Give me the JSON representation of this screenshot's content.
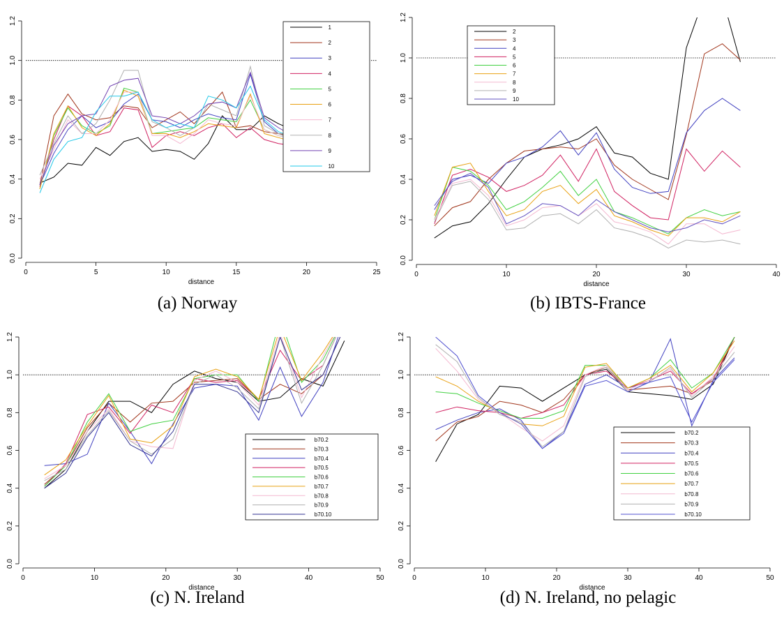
{
  "chart_data": [
    {
      "type": "line",
      "caption": "(a) Norway",
      "xlabel": "distance",
      "legend": "upper right",
      "hline": 1,
      "hline_style": "dotted",
      "x": [
        1,
        2,
        3,
        4,
        5,
        6,
        7,
        8,
        9,
        10,
        11,
        12,
        13,
        14,
        15,
        16,
        17,
        18,
        19
      ],
      "xlim": [
        0,
        25
      ],
      "xticks": [
        0,
        5,
        10,
        15,
        20,
        25
      ],
      "ylim": [
        0,
        1.2
      ],
      "yticks": [
        {
          "value": 0,
          "label": "0.0"
        },
        0.2,
        0.4,
        0.6,
        0.8,
        {
          "value": 1,
          "label": "1.0"
        },
        1.2
      ],
      "series": [
        {
          "name": "1",
          "color": "#000000",
          "values": [
            0.38,
            0.41,
            0.48,
            0.47,
            0.56,
            0.52,
            0.59,
            0.61,
            0.54,
            0.55,
            0.54,
            0.5,
            0.58,
            0.72,
            0.65,
            0.65,
            0.72,
            0.68,
            0.65
          ]
        },
        {
          "name": "2",
          "color": "#a0341a",
          "values": [
            0.37,
            0.72,
            0.83,
            0.73,
            0.7,
            0.71,
            0.77,
            0.76,
            0.66,
            0.7,
            0.74,
            0.68,
            0.76,
            0.84,
            0.66,
            0.67,
            0.64,
            0.63,
            0.62
          ]
        },
        {
          "name": "3",
          "color": "#4040c0",
          "values": [
            0.37,
            0.53,
            0.65,
            0.72,
            0.66,
            0.69,
            0.78,
            0.83,
            0.7,
            0.69,
            0.66,
            0.7,
            0.73,
            0.71,
            0.7,
            0.93,
            0.69,
            0.63,
            0.6
          ]
        },
        {
          "name": "4",
          "color": "#d02060",
          "values": [
            0.36,
            0.6,
            0.77,
            0.72,
            0.62,
            0.64,
            0.76,
            0.75,
            0.56,
            0.62,
            0.64,
            0.62,
            0.66,
            0.68,
            0.61,
            0.66,
            0.6,
            0.58,
            0.57
          ]
        },
        {
          "name": "5",
          "color": "#40d040",
          "values": [
            0.35,
            0.62,
            0.76,
            0.67,
            0.63,
            0.67,
            0.86,
            0.84,
            0.63,
            0.64,
            0.65,
            0.66,
            0.71,
            0.7,
            0.69,
            0.8,
            0.65,
            0.62,
            0.6
          ]
        },
        {
          "name": "6",
          "color": "#e8a010",
          "values": [
            0.35,
            0.63,
            0.77,
            0.66,
            0.62,
            0.68,
            0.85,
            0.82,
            0.63,
            0.63,
            0.61,
            0.64,
            0.68,
            0.67,
            0.66,
            0.83,
            0.63,
            0.61,
            0.59
          ]
        },
        {
          "name": "7",
          "color": "#f4b8d0",
          "values": [
            0.4,
            0.55,
            0.7,
            0.63,
            0.63,
            0.7,
            0.84,
            0.84,
            0.62,
            0.62,
            0.58,
            0.63,
            0.7,
            0.68,
            0.67,
            0.82,
            0.65,
            0.62,
            0.6
          ]
        },
        {
          "name": "8",
          "color": "#b0b0b0",
          "values": [
            0.42,
            0.58,
            0.72,
            0.63,
            0.68,
            0.8,
            0.95,
            0.95,
            0.69,
            0.66,
            0.62,
            0.66,
            0.78,
            0.75,
            0.72,
            0.97,
            0.67,
            0.63,
            0.6
          ]
        },
        {
          "name": "9",
          "color": "#7040b0",
          "values": [
            0.37,
            0.57,
            0.68,
            0.72,
            0.73,
            0.87,
            0.9,
            0.91,
            0.72,
            0.71,
            0.68,
            0.72,
            0.78,
            0.79,
            0.76,
            0.94,
            0.71,
            0.66,
            0.62
          ]
        },
        {
          "name": "10",
          "color": "#20c8e8",
          "values": [
            0.33,
            0.5,
            0.59,
            0.61,
            0.74,
            0.82,
            0.82,
            0.84,
            0.7,
            0.66,
            0.68,
            0.66,
            0.82,
            0.8,
            0.76,
            0.87,
            0.7,
            0.64,
            0.61
          ]
        }
      ]
    },
    {
      "type": "line",
      "caption": "(b) IBTS-France",
      "xlabel": "distance",
      "legend": "upper left",
      "hline": 1,
      "hline_style": "dotted",
      "x": [
        2,
        4,
        6,
        8,
        10,
        12,
        14,
        16,
        18,
        20,
        22,
        24,
        26,
        28,
        30,
        32,
        34,
        36
      ],
      "xlim": [
        0,
        40
      ],
      "xticks": [
        0,
        10,
        20,
        30,
        40
      ],
      "ylim": [
        0,
        1.2
      ],
      "yticks": [
        {
          "value": 0,
          "label": "0.0"
        },
        0.2,
        0.4,
        0.6,
        0.8,
        {
          "value": 1,
          "label": "1.0"
        },
        1.2
      ],
      "series": [
        {
          "name": "2",
          "color": "#000000",
          "values": [
            0.11,
            0.17,
            0.19,
            0.28,
            0.4,
            0.51,
            0.55,
            0.57,
            0.6,
            0.66,
            0.53,
            0.51,
            0.43,
            0.4,
            1.05,
            1.3,
            1.3,
            0.98
          ]
        },
        {
          "name": "3",
          "color": "#a0341a",
          "values": [
            0.17,
            0.26,
            0.29,
            0.4,
            0.48,
            0.54,
            0.55,
            0.56,
            0.55,
            0.6,
            0.47,
            0.4,
            0.35,
            0.3,
            0.62,
            1.02,
            1.07,
            0.99
          ]
        },
        {
          "name": "4",
          "color": "#4040c0",
          "values": [
            0.25,
            0.4,
            0.42,
            0.38,
            0.48,
            0.51,
            0.56,
            0.64,
            0.52,
            0.63,
            0.45,
            0.36,
            0.33,
            0.34,
            0.63,
            0.74,
            0.8,
            0.74
          ]
        },
        {
          "name": "5",
          "color": "#d02060",
          "values": [
            0.18,
            0.42,
            0.45,
            0.41,
            0.34,
            0.37,
            0.42,
            0.52,
            0.39,
            0.55,
            0.34,
            0.27,
            0.21,
            0.2,
            0.55,
            0.44,
            0.54,
            0.46
          ]
        },
        {
          "name": "6",
          "color": "#40d040",
          "values": [
            0.2,
            0.46,
            0.44,
            0.37,
            0.25,
            0.29,
            0.36,
            0.44,
            0.32,
            0.4,
            0.24,
            0.21,
            0.17,
            0.13,
            0.21,
            0.25,
            0.22,
            0.24
          ]
        },
        {
          "name": "7",
          "color": "#e8a010",
          "values": [
            0.22,
            0.46,
            0.48,
            0.34,
            0.22,
            0.25,
            0.34,
            0.37,
            0.28,
            0.35,
            0.22,
            0.19,
            0.15,
            0.12,
            0.21,
            0.21,
            0.19,
            0.24
          ]
        },
        {
          "name": "8",
          "color": "#f4b8d0",
          "values": [
            0.2,
            0.38,
            0.4,
            0.32,
            0.17,
            0.2,
            0.26,
            0.27,
            0.22,
            0.28,
            0.19,
            0.17,
            0.14,
            0.08,
            0.18,
            0.18,
            0.13,
            0.15
          ]
        },
        {
          "name": "9",
          "color": "#b0b0b0",
          "values": [
            0.19,
            0.37,
            0.39,
            0.3,
            0.15,
            0.16,
            0.22,
            0.23,
            0.18,
            0.25,
            0.16,
            0.14,
            0.11,
            0.06,
            0.1,
            0.09,
            0.1,
            0.08
          ]
        },
        {
          "name": "10",
          "color": "#6050c0",
          "values": [
            0.27,
            0.39,
            0.43,
            0.36,
            0.18,
            0.22,
            0.28,
            0.27,
            0.22,
            0.3,
            0.24,
            0.2,
            0.16,
            0.14,
            0.16,
            0.2,
            0.18,
            0.22
          ]
        }
      ]
    },
    {
      "type": "line",
      "caption": "(c) N. Ireland",
      "xlabel": "distance",
      "legend": "lower right",
      "hline": 1,
      "hline_style": "dotted",
      "x": [
        3,
        6,
        9,
        12,
        15,
        18,
        21,
        24,
        27,
        30,
        33,
        36,
        39,
        42,
        45
      ],
      "xlim": [
        0,
        50
      ],
      "xticks": [
        0,
        10,
        20,
        30,
        40,
        50
      ],
      "ylim": [
        0,
        1.2
      ],
      "yticks": [
        {
          "value": 0,
          "label": "0.0"
        },
        0.2,
        0.4,
        0.6,
        0.8,
        {
          "value": 1,
          "label": "1.0"
        },
        1.2
      ],
      "series": [
        {
          "name": "b70.2",
          "color": "#000000",
          "values": [
            0.4,
            0.5,
            0.7,
            0.86,
            0.86,
            0.8,
            0.95,
            1.02,
            0.98,
            0.96,
            0.86,
            0.88,
            0.98,
            0.94,
            1.18
          ]
        },
        {
          "name": "b70.3",
          "color": "#a0341a",
          "values": [
            0.42,
            0.52,
            0.72,
            0.85,
            0.75,
            0.85,
            0.86,
            0.96,
            0.97,
            0.98,
            0.87,
            0.95,
            0.9,
            1.0,
            1.25
          ]
        },
        {
          "name": "b70.4",
          "color": "#4040c0",
          "values": [
            0.52,
            0.53,
            0.58,
            0.85,
            0.7,
            0.53,
            0.74,
            0.93,
            0.95,
            0.94,
            0.76,
            1.04,
            0.78,
            0.96,
            1.3
          ]
        },
        {
          "name": "b70.5",
          "color": "#d02060",
          "values": [
            0.41,
            0.53,
            0.79,
            0.83,
            0.69,
            0.84,
            0.8,
            0.98,
            0.96,
            0.97,
            0.87,
            1.13,
            0.97,
            1.05,
            1.3
          ]
        },
        {
          "name": "b70.6",
          "color": "#40d040",
          "values": [
            0.41,
            0.52,
            0.75,
            0.9,
            0.7,
            0.74,
            0.76,
            0.98,
            1.0,
            1.0,
            0.86,
            1.3,
            0.96,
            1.08,
            1.3
          ]
        },
        {
          "name": "b70.7",
          "color": "#e8a010",
          "values": [
            0.47,
            0.55,
            0.73,
            0.89,
            0.66,
            0.64,
            0.73,
            0.99,
            1.03,
            0.99,
            0.87,
            1.25,
            0.97,
            1.12,
            1.3
          ]
        },
        {
          "name": "b70.8",
          "color": "#f4b8d0",
          "values": [
            0.45,
            0.52,
            0.7,
            0.82,
            0.65,
            0.62,
            0.61,
            0.97,
            1.02,
            0.96,
            0.84,
            1.22,
            0.88,
            1.1,
            1.3
          ]
        },
        {
          "name": "b70.9",
          "color": "#b0b0b0",
          "values": [
            0.44,
            0.5,
            0.68,
            0.81,
            0.65,
            0.58,
            0.66,
            0.95,
            1.0,
            0.93,
            0.82,
            1.2,
            0.85,
            1.05,
            1.3
          ]
        },
        {
          "name": "b70.10",
          "color": "#303090",
          "values": [
            0.4,
            0.48,
            0.67,
            0.8,
            0.63,
            0.57,
            0.7,
            0.95,
            0.95,
            0.91,
            0.8,
            1.2,
            0.92,
            1.0,
            1.25
          ]
        }
      ]
    },
    {
      "type": "line",
      "caption": "(d) N. Ireland, no pelagic",
      "xlabel": "distance",
      "legend": "lower center",
      "hline": 1,
      "hline_style": "dotted",
      "x": [
        3,
        6,
        9,
        12,
        15,
        18,
        21,
        24,
        27,
        30,
        33,
        36,
        39,
        42,
        45
      ],
      "xlim": [
        0,
        50
      ],
      "xticks": [
        0,
        10,
        20,
        30,
        40,
        50
      ],
      "ylim": [
        0,
        1.2
      ],
      "yticks": [
        {
          "value": 0,
          "label": "0.0"
        },
        0.2,
        0.4,
        0.6,
        0.8,
        {
          "value": 1,
          "label": "1.0"
        },
        1.2
      ],
      "series": [
        {
          "name": "b70.2",
          "color": "#000000",
          "values": [
            0.54,
            0.74,
            0.79,
            0.94,
            0.93,
            0.86,
            0.93,
            1.0,
            1.03,
            0.91,
            0.9,
            0.89,
            0.87,
            0.95,
            1.2
          ]
        },
        {
          "name": "b70.3",
          "color": "#a0341a",
          "values": [
            0.65,
            0.75,
            0.78,
            0.86,
            0.84,
            0.8,
            0.87,
            1.0,
            1.04,
            0.92,
            0.93,
            0.94,
            0.9,
            0.97,
            1.2
          ]
        },
        {
          "name": "b70.4",
          "color": "#4040c0",
          "values": [
            0.71,
            0.76,
            0.8,
            0.82,
            0.76,
            0.61,
            0.7,
            0.95,
            1.0,
            0.93,
            0.96,
            1.19,
            0.73,
            0.97,
            1.09
          ]
        },
        {
          "name": "b70.5",
          "color": "#d02060",
          "values": [
            0.8,
            0.83,
            0.81,
            0.8,
            0.77,
            0.8,
            0.84,
            1.0,
            1.02,
            0.93,
            0.97,
            1.02,
            0.9,
            0.98,
            1.2
          ]
        },
        {
          "name": "b70.6",
          "color": "#40d040",
          "values": [
            0.91,
            0.9,
            0.85,
            0.81,
            0.77,
            0.77,
            0.81,
            1.05,
            1.05,
            0.93,
            0.98,
            1.08,
            0.93,
            1.01,
            1.2
          ]
        },
        {
          "name": "b70.7",
          "color": "#e8a010",
          "values": [
            0.99,
            0.94,
            0.86,
            0.8,
            0.74,
            0.73,
            0.78,
            1.04,
            1.06,
            0.93,
            0.98,
            1.05,
            0.91,
            1.01,
            1.18
          ]
        },
        {
          "name": "b70.8",
          "color": "#f4b8d0",
          "values": [
            1.14,
            1.02,
            0.87,
            0.8,
            0.72,
            0.65,
            0.73,
            1.0,
            1.05,
            0.92,
            0.97,
            1.03,
            0.89,
            0.99,
            1.15
          ]
        },
        {
          "name": "b70.9",
          "color": "#b0b0b0",
          "values": [
            1.16,
            1.07,
            0.88,
            0.79,
            0.75,
            0.62,
            0.7,
            0.99,
            1.04,
            0.91,
            0.96,
            1.04,
            0.88,
            0.98,
            1.12
          ]
        },
        {
          "name": "b70.10",
          "color": "#5050d0",
          "values": [
            1.2,
            1.1,
            0.89,
            0.8,
            0.74,
            0.61,
            0.69,
            0.94,
            0.97,
            0.91,
            0.96,
            0.99,
            0.75,
            0.96,
            1.08
          ]
        }
      ]
    }
  ]
}
